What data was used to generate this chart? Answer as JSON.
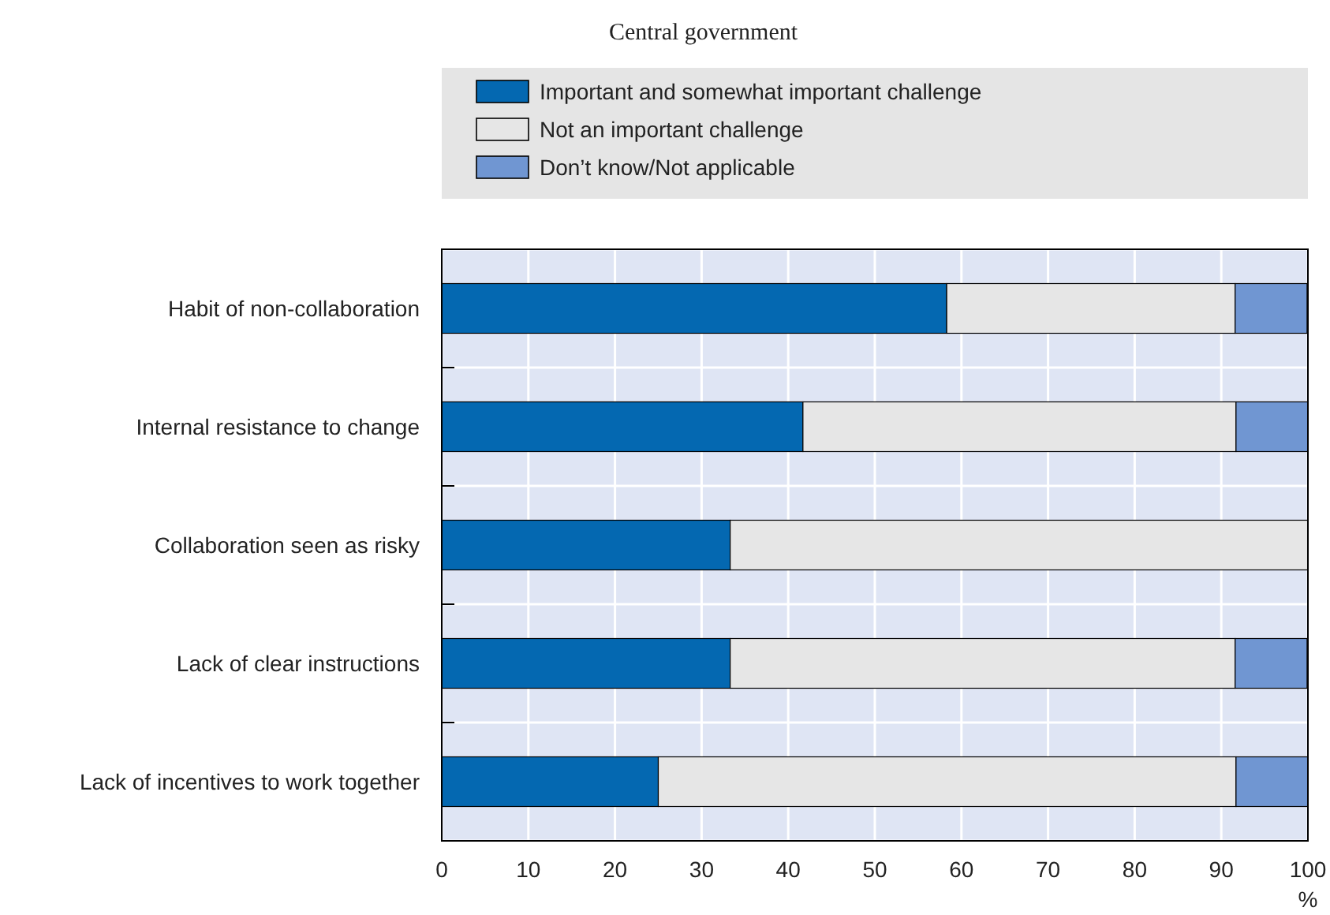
{
  "chart_data": {
    "type": "bar",
    "orientation": "horizontal",
    "stacked": true,
    "title": "Central government",
    "xlabel": "%",
    "categories": [
      "Habit of non-collaboration",
      "Internal resistance to change",
      "Collaboration seen as risky",
      "Lack of clear instructions",
      "Lack of incentives to work together"
    ],
    "series": [
      {
        "name": "Important and somewhat important challenge",
        "color": "#0468b1",
        "values": [
          58.3,
          41.7,
          33.3,
          33.3,
          25
        ]
      },
      {
        "name": "Not an important challenge",
        "color": "#e6e6e6",
        "values": [
          33.3,
          50,
          66.7,
          58.3,
          66.7
        ]
      },
      {
        "name": "Don’t know/Not applicable",
        "color": "#7096d2",
        "values": [
          8.3,
          8.3,
          0,
          8.3,
          8.3
        ]
      }
    ],
    "xlim": [
      0,
      100
    ],
    "xticks": [
      0,
      10,
      20,
      30,
      40,
      50,
      60,
      70,
      80,
      90,
      100
    ],
    "grid": true,
    "legend": "top"
  }
}
